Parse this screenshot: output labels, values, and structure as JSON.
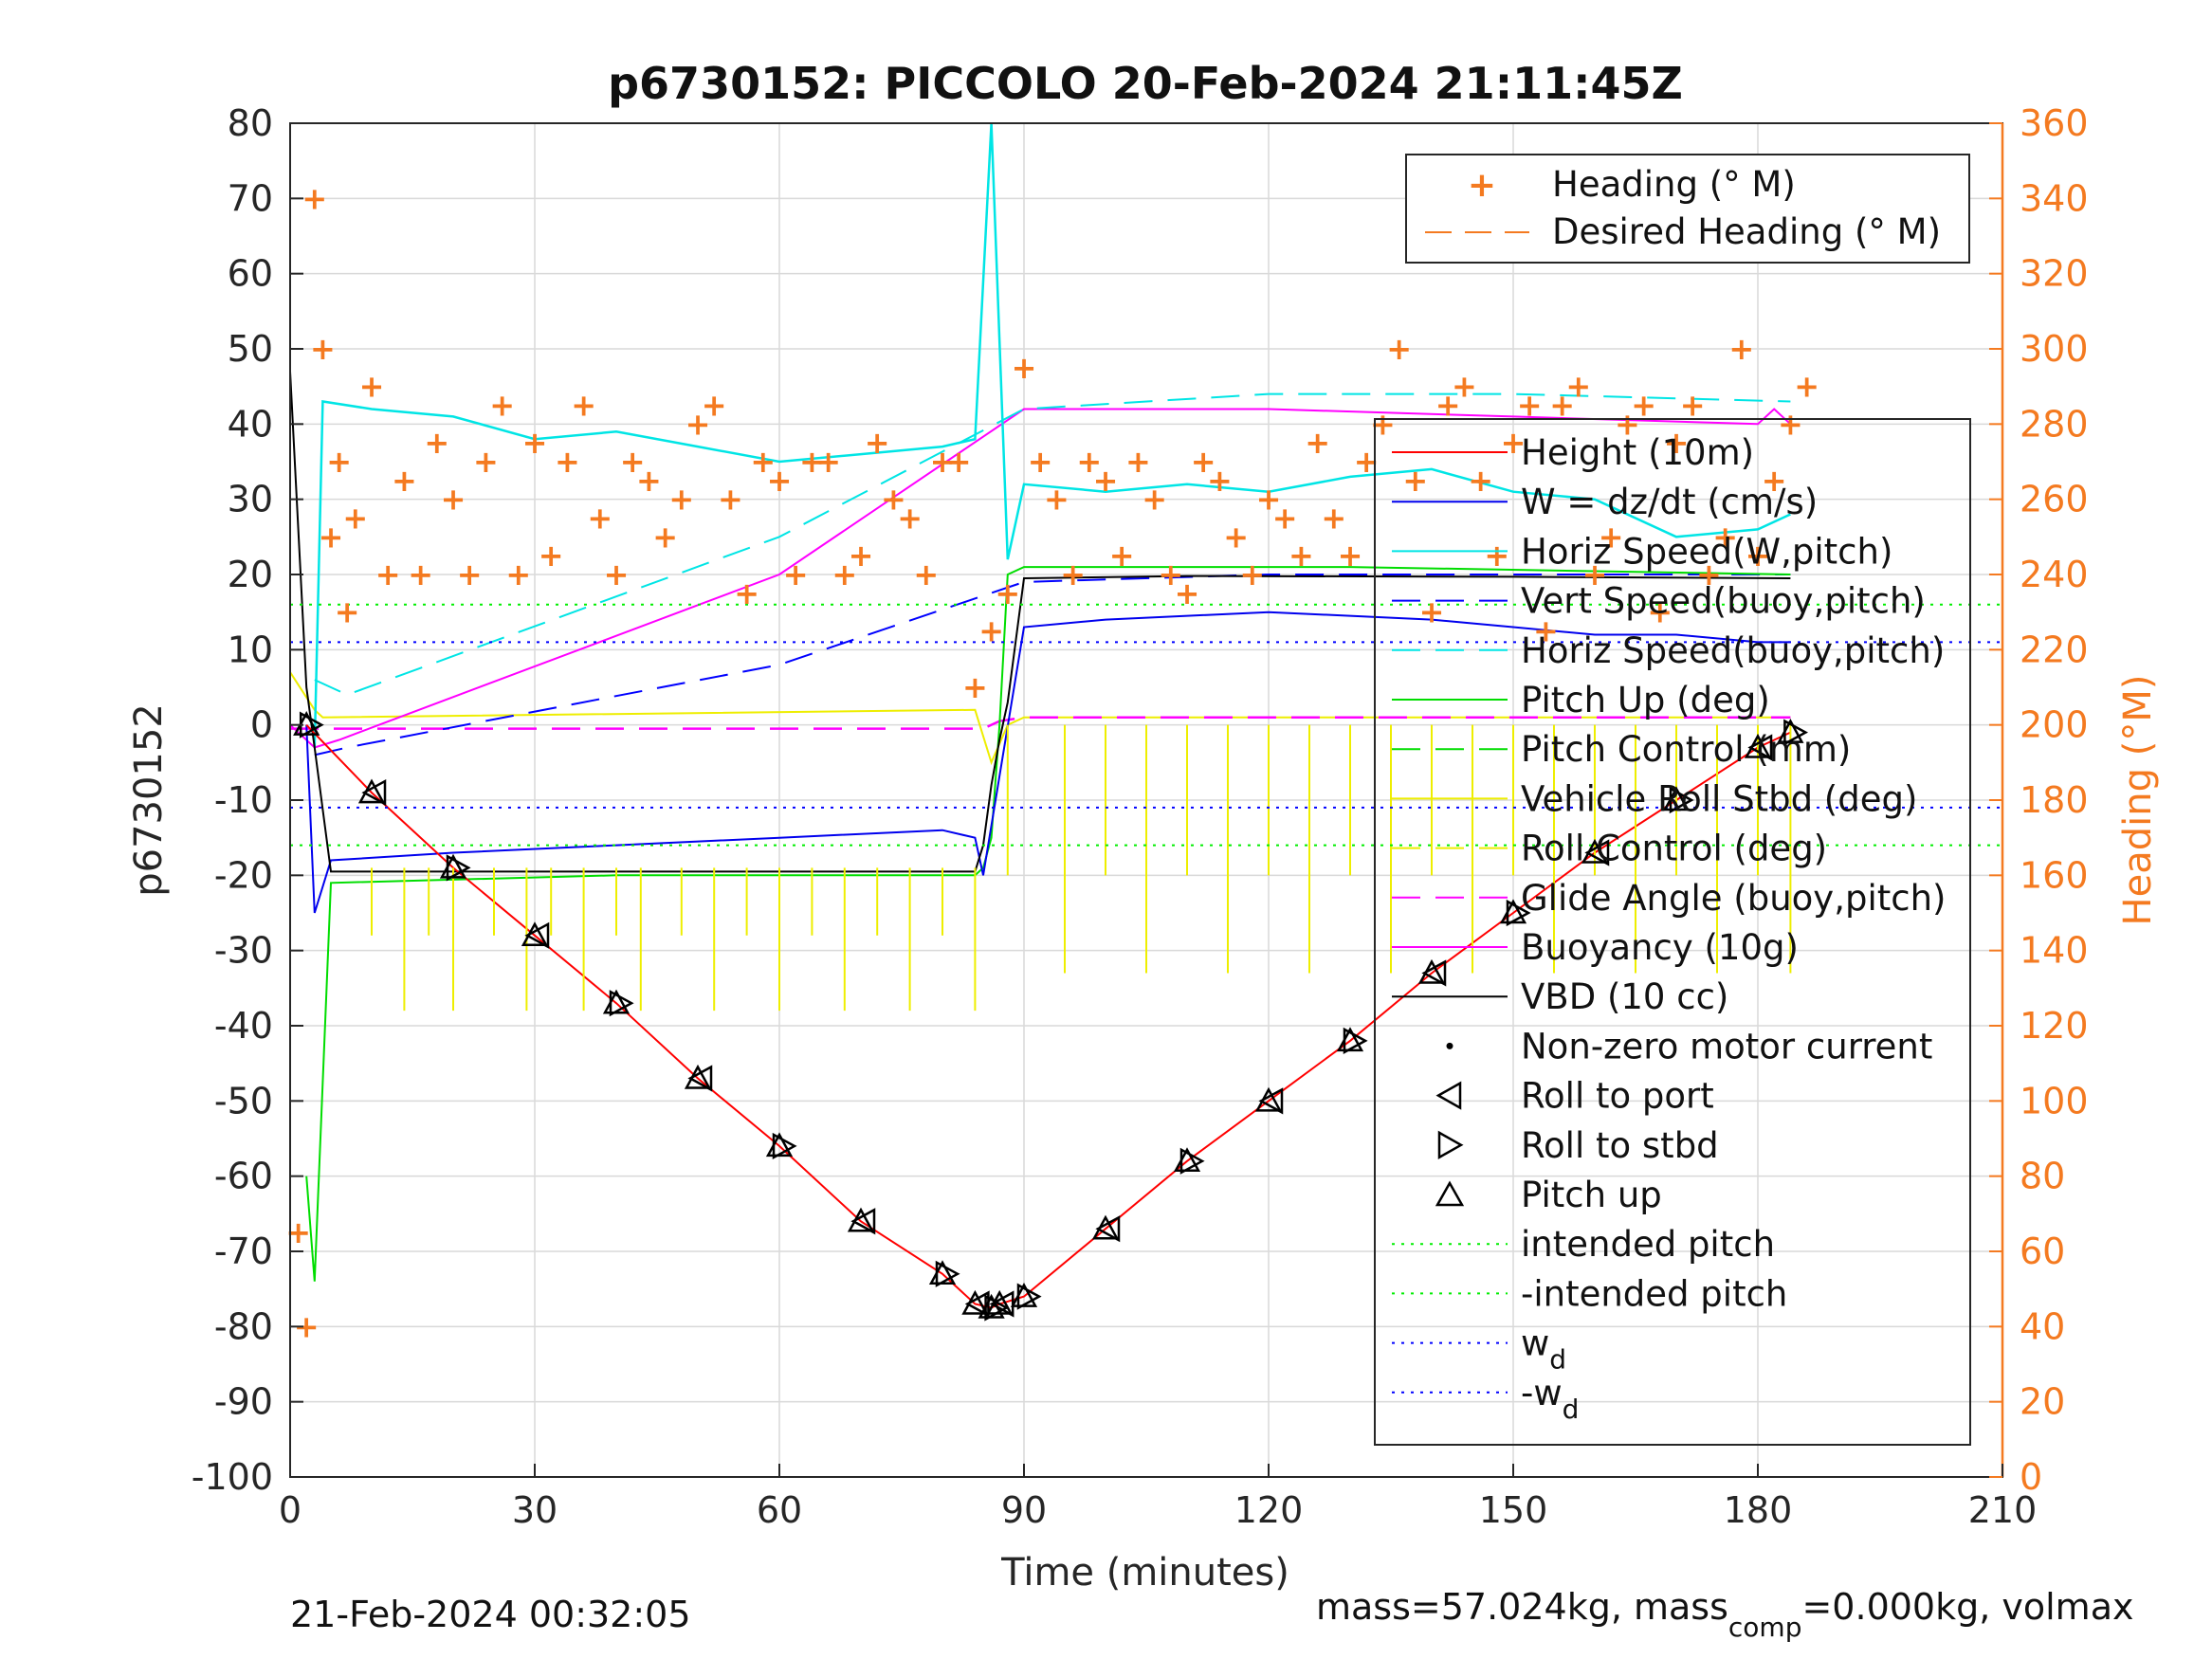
{
  "chart_data": {
    "type": "line",
    "title": "p6730152: PICCOLO 20-Feb-2024 21:11:45Z",
    "xlabel": "Time (minutes)",
    "ylabel": "p6730152",
    "y2label": "Heading (°M)",
    "xlim": [
      0,
      210
    ],
    "ylim": [
      -100,
      80
    ],
    "y2lim": [
      0,
      360
    ],
    "xticks": [
      "0",
      "30",
      "60",
      "90",
      "120",
      "150",
      "180",
      "210"
    ],
    "yticks": [
      "-100",
      "-90",
      "-80",
      "-70",
      "-60",
      "-50",
      "-40",
      "-30",
      "-20",
      "-10",
      "0",
      "10",
      "20",
      "30",
      "40",
      "50",
      "60",
      "70",
      "80"
    ],
    "y2ticks": [
      "0",
      "20",
      "40",
      "60",
      "80",
      "100",
      "120",
      "140",
      "160",
      "180",
      "200",
      "220",
      "240",
      "260",
      "280",
      "300",
      "320",
      "340",
      "360"
    ],
    "grid": true,
    "footer_left": "21-Feb-2024 00:32:05",
    "footer_right": {
      "a": "mass=57.024kg, mass",
      "sub": "comp",
      "b": "=0.000kg, volmax"
    },
    "heading_legend": [
      "Heading (° M)",
      "Desired Heading (° M)"
    ],
    "legend": [
      "Height (10m)",
      "W = dz/dt (cm/s)",
      "Horiz Speed(W,pitch)",
      "Vert Speed(buoy,pitch)",
      "Horiz Speed(buoy,pitch)",
      "Pitch Up (deg)",
      "Pitch Control (mm)",
      "Vehicle Roll Stbd (deg)",
      "Roll Control (deg)",
      "Glide Angle (buoy,pitch)",
      "Buoyancy (10g)",
      "VBD (10 cc)",
      "Non-zero motor current",
      "Roll to port",
      "Roll to stbd",
      "Pitch up",
      "intended pitch",
      "-intended pitch",
      "w",
      "-w"
    ],
    "legend_sub": "d",
    "colors": {
      "height": "#ff0000",
      "w": "#0000ff",
      "horiz_w": "#00ffff",
      "vert_buoy": "#0000ff",
      "horiz_buoy": "#00ffff",
      "pitch": "#00ff00",
      "pitch_ctrl": "#00ff00",
      "roll": "#ffff00",
      "roll_ctrl": "#ffff00",
      "glide": "#ff00ff",
      "buoyancy": "#ff00ff",
      "vbd": "#000000",
      "heading": "#f47a20"
    },
    "series": [
      {
        "name": "Height (10m)",
        "x": [
          2,
          10,
          20,
          30,
          40,
          50,
          60,
          70,
          80,
          84,
          86,
          87,
          90,
          100,
          110,
          120,
          130,
          140,
          150,
          160,
          170,
          180,
          184
        ],
        "y": [
          0,
          -9,
          -19,
          -28,
          -37,
          -47,
          -56,
          -66,
          -73,
          -77,
          -77.5,
          -77,
          -76,
          -67,
          -58,
          -50,
          -42,
          -33,
          -25,
          -17,
          -10,
          -3,
          -1
        ]
      },
      {
        "name": "VBD (10 cc)",
        "x": [
          0,
          2,
          3,
          5,
          84,
          85,
          86,
          87,
          88,
          90,
          110,
          150,
          184
        ],
        "y": [
          47,
          5,
          -3,
          -19.5,
          -19.5,
          -16,
          -8,
          -2,
          3,
          19.5,
          19.8,
          19.7,
          19.5
        ]
      },
      {
        "name": "Buoyancy (10g)",
        "x": [
          0,
          3,
          6,
          60,
          90,
          120,
          150,
          180,
          182,
          184
        ],
        "y": [
          0,
          -3,
          -2,
          20,
          42,
          42,
          41,
          40,
          42,
          40
        ]
      },
      {
        "name": "Glide Angle (buoy,pitch)",
        "x": [
          0,
          85,
          87,
          90,
          184
        ],
        "y": [
          -0.5,
          -0.5,
          0.5,
          1,
          1
        ]
      },
      {
        "name": "Vert Speed(buoy,pitch)",
        "x": [
          3,
          7,
          60,
          90,
          120,
          150,
          184
        ],
        "y": [
          -4,
          -3,
          8,
          19,
          20,
          20,
          20
        ]
      },
      {
        "name": "Horiz Speed(buoy,pitch)",
        "x": [
          3,
          7,
          60,
          90,
          120,
          150,
          184
        ],
        "y": [
          6,
          4,
          25,
          42,
          44,
          44,
          43
        ]
      },
      {
        "name": "Horiz Speed(W,pitch)",
        "x": [
          3,
          4,
          10,
          20,
          30,
          40,
          50,
          60,
          70,
          80,
          84,
          86,
          88,
          90,
          100,
          110,
          120,
          130,
          140,
          150,
          160,
          170,
          180,
          184
        ],
        "y": [
          -3,
          43,
          42,
          41,
          38,
          39,
          37,
          35,
          36,
          37,
          38,
          80,
          22,
          32,
          31,
          32,
          31,
          33,
          34,
          31,
          30,
          25,
          26,
          28
        ]
      },
      {
        "name": "W = dz/dt (cm/s)",
        "x": [
          2,
          3,
          5,
          20,
          40,
          60,
          80,
          84,
          85,
          90,
          100,
          120,
          140,
          150,
          160,
          170,
          180,
          184
        ],
        "y": [
          0,
          -25,
          -18,
          -17,
          -16,
          -15,
          -14,
          -15,
          -20,
          13,
          14,
          15,
          14,
          13,
          12,
          12,
          11,
          11
        ]
      },
      {
        "name": "Pitch Up (deg)",
        "x": [
          2,
          3,
          5,
          40,
          84,
          85,
          86,
          87,
          88,
          90,
          130,
          184
        ],
        "y": [
          -60,
          -74,
          -21,
          -20,
          -20,
          -19,
          -15,
          0,
          20,
          21,
          21,
          20
        ]
      },
      {
        "name": "Vehicle Roll Stbd (deg)",
        "x": [
          0,
          3,
          4,
          84,
          86,
          88,
          90,
          184
        ],
        "y": [
          7,
          2,
          1,
          2,
          -5,
          0,
          1,
          1
        ]
      },
      {
        "name": "Heading (° M)",
        "x": [
          1,
          2,
          3,
          4,
          5,
          6,
          7,
          8,
          10,
          12,
          14,
          16,
          18,
          20,
          22,
          24,
          26,
          28,
          30,
          32,
          34,
          36,
          38,
          40,
          42,
          44,
          46,
          48,
          50,
          52,
          54,
          56,
          58,
          60,
          62,
          64,
          66,
          68,
          70,
          72,
          74,
          76,
          78,
          80,
          82,
          84,
          86,
          88,
          90,
          92,
          94,
          96,
          98,
          100,
          102,
          104,
          106,
          108,
          110,
          112,
          114,
          116,
          118,
          120,
          122,
          124,
          126,
          128,
          130,
          132,
          134,
          136,
          138,
          140,
          142,
          144,
          146,
          148,
          150,
          152,
          154,
          156,
          158,
          160,
          162,
          164,
          166,
          168,
          170,
          172,
          174,
          176,
          178,
          180,
          182,
          184,
          186
        ],
        "y": [
          65,
          40,
          340,
          300,
          250,
          270,
          230,
          255,
          290,
          240,
          265,
          240,
          275,
          260,
          240,
          270,
          285,
          240,
          275,
          245,
          270,
          285,
          255,
          240,
          270,
          265,
          250,
          260,
          280,
          285,
          260,
          235,
          270,
          265,
          240,
          270,
          270,
          240,
          245,
          275,
          260,
          255,
          240,
          270,
          270,
          210,
          225,
          235,
          295,
          270,
          260,
          240,
          270,
          265,
          245,
          270,
          260,
          240,
          235,
          270,
          265,
          250,
          240,
          260,
          255,
          245,
          275,
          255,
          245,
          270,
          280,
          300,
          265,
          230,
          285,
          290,
          265,
          245,
          275,
          285,
          225,
          285,
          290,
          240,
          250,
          280,
          285,
          230,
          275,
          285,
          240,
          250,
          300,
          245,
          265,
          280,
          290
        ]
      }
    ]
  }
}
